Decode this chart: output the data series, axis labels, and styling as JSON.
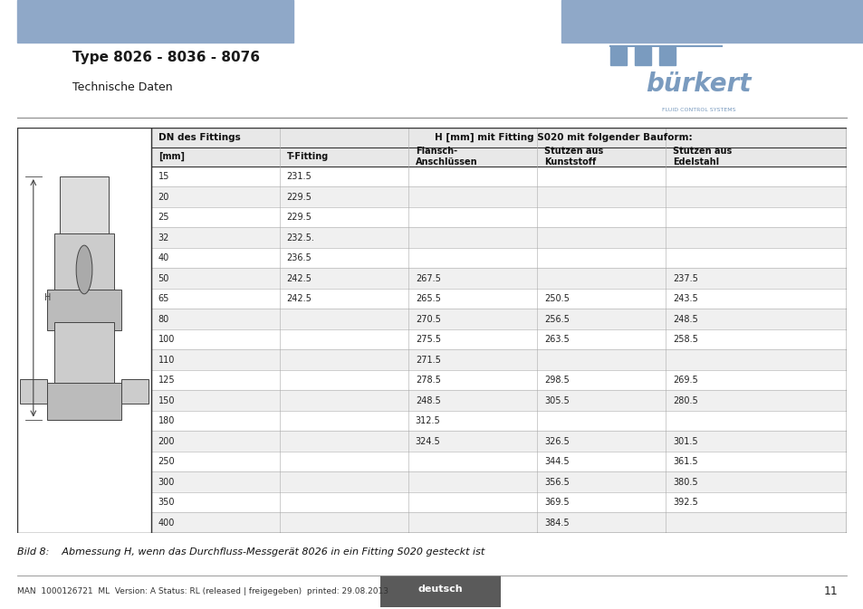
{
  "title": "Type 8026 - 8036 - 8076",
  "subtitle": "Technische Daten",
  "header_bar_color": "#8fa8c8",
  "page_bg": "#ffffff",
  "table_header_row1": [
    "DN des Fittings",
    "H [mm] mit Fitting S020 mit folgender Bauform:"
  ],
  "table_header_row2": [
    "[mm]",
    "T-Fitting",
    "Flansch-\nAnschlüssen",
    "Stutzen aus\nKunststoff",
    "Stutzen aus\nEdelstahl"
  ],
  "table_data": [
    [
      "15",
      "231.5",
      "",
      "",
      ""
    ],
    [
      "20",
      "229.5",
      "",
      "",
      ""
    ],
    [
      "25",
      "229.5",
      "",
      "",
      ""
    ],
    [
      "32",
      "232.5.",
      "",
      "",
      ""
    ],
    [
      "40",
      "236.5",
      "",
      "",
      ""
    ],
    [
      "50",
      "242.5",
      "267.5",
      "",
      "237.5"
    ],
    [
      "65",
      "242.5",
      "265.5",
      "250.5",
      "243.5"
    ],
    [
      "80",
      "",
      "270.5",
      "256.5",
      "248.5"
    ],
    [
      "100",
      "",
      "275.5",
      "263.5",
      "258.5"
    ],
    [
      "110",
      "",
      "271.5",
      "",
      ""
    ],
    [
      "125",
      "",
      "278.5",
      "298.5",
      "269.5"
    ],
    [
      "150",
      "",
      "248.5",
      "305.5",
      "280.5"
    ],
    [
      "180",
      "",
      "312.5",
      "",
      ""
    ],
    [
      "200",
      "",
      "324.5",
      "326.5",
      "301.5"
    ],
    [
      "250",
      "",
      "",
      "344.5",
      "361.5"
    ],
    [
      "300",
      "",
      "",
      "356.5",
      "380.5"
    ],
    [
      "350",
      "",
      "",
      "369.5",
      "392.5"
    ],
    [
      "400",
      "",
      "",
      "384.5",
      ""
    ]
  ],
  "caption": "Bild 8:    Abmessung H, wenn das Durchfluss-Messgerät 8026 in ein Fitting S020 gesteckt ist",
  "footer_text": "MAN  1000126721  ML  Version: A Status: RL (released | freigegeben)  printed: 29.08.2013",
  "footer_badge_text": "deutsch",
  "footer_badge_color": "#5a5a5a",
  "footer_page": "11",
  "burkert_color": "#7a9bbf",
  "title_color": "#1a1a1a",
  "table_outer_border": "#333333",
  "table_inner_border": "#aaaaaa",
  "header_text_color": "#111111",
  "data_text_color": "#222222",
  "alt_row_color": "#f0f0f0",
  "white_row_color": "#ffffff"
}
